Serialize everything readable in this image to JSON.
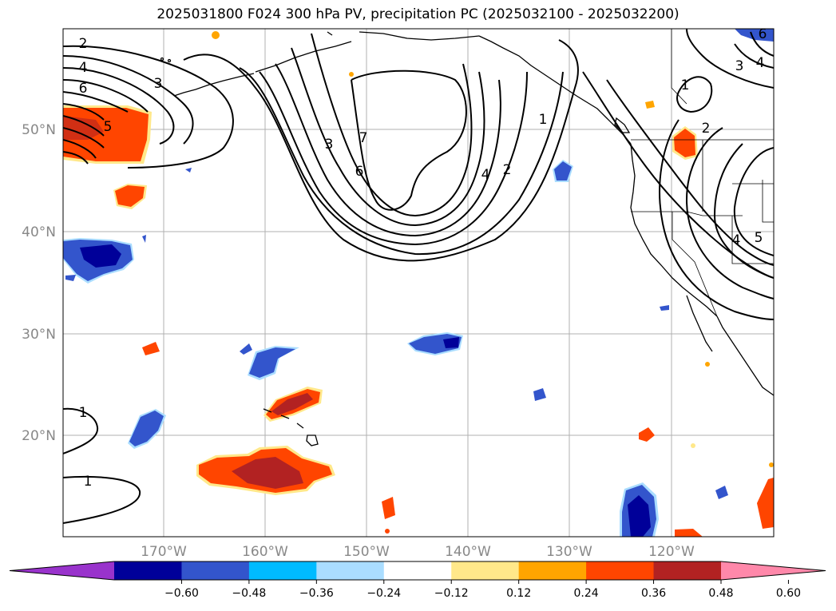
{
  "title": "2025031800 F024 300 hPa PV, precipitation PC (2025032100 - 2025032200)",
  "lat_labels": [
    "50°N",
    "40°N",
    "30°N",
    "20°N"
  ],
  "lon_labels": [
    "170°W",
    "160°W",
    "150°W",
    "140°W",
    "130°W",
    "120°W"
  ],
  "colorbar": {
    "colors": [
      "#9933cc",
      "#000099",
      "#3355cc",
      "#00bbff",
      "#aaddff",
      "#ffffff",
      "#ffe88a",
      "#ffa500",
      "#ff4500",
      "#b22222",
      "#ff88aa"
    ],
    "tick_labels": [
      "−0.60",
      "−0.48",
      "−0.36",
      "−0.24",
      "−0.12",
      "0.12",
      "0.24",
      "0.36",
      "0.48",
      "0.60"
    ]
  },
  "contour_labels": [
    "2",
    "4",
    "6",
    "3",
    "5",
    "3",
    "7",
    "6",
    "4",
    "2",
    "1",
    "1",
    "2",
    "3",
    "4",
    "6",
    "5",
    "4",
    "1",
    "1"
  ]
}
